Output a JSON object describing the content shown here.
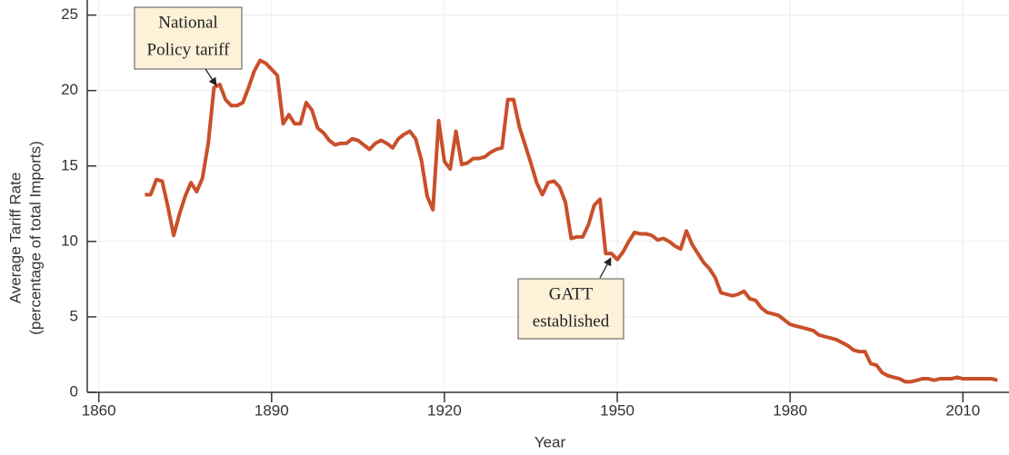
{
  "chart_data": {
    "type": "line",
    "x_label": "Year",
    "y_label": [
      "Average Tariff Rate",
      "(percentage of  total Imports)"
    ],
    "x": [
      1868,
      1869,
      1870,
      1871,
      1872,
      1873,
      1874,
      1875,
      1876,
      1877,
      1878,
      1879,
      1880,
      1881,
      1882,
      1883,
      1884,
      1885,
      1886,
      1887,
      1888,
      1889,
      1890,
      1891,
      1892,
      1893,
      1894,
      1895,
      1896,
      1897,
      1898,
      1899,
      1900,
      1901,
      1902,
      1903,
      1904,
      1905,
      1906,
      1907,
      1908,
      1909,
      1910,
      1911,
      1912,
      1913,
      1914,
      1915,
      1916,
      1917,
      1918,
      1919,
      1920,
      1921,
      1922,
      1923,
      1924,
      1925,
      1926,
      1927,
      1928,
      1929,
      1930,
      1931,
      1932,
      1933,
      1934,
      1935,
      1936,
      1937,
      1938,
      1939,
      1940,
      1941,
      1942,
      1943,
      1944,
      1945,
      1946,
      1947,
      1948,
      1949,
      1950,
      1951,
      1952,
      1953,
      1954,
      1955,
      1956,
      1957,
      1958,
      1959,
      1960,
      1961,
      1962,
      1963,
      1964,
      1965,
      1966,
      1967,
      1968,
      1969,
      1970,
      1971,
      1972,
      1973,
      1974,
      1975,
      1976,
      1977,
      1978,
      1979,
      1980,
      1981,
      1982,
      1983,
      1984,
      1985,
      1986,
      1987,
      1988,
      1989,
      1990,
      1991,
      1992,
      1993,
      1994,
      1995,
      1996,
      1997,
      1998,
      1999,
      2000,
      2001,
      2002,
      2003,
      2004,
      2005,
      2006,
      2007,
      2008,
      2009,
      2010,
      2011,
      2012,
      2013,
      2014,
      2015,
      2016
    ],
    "values": [
      13.1,
      13.1,
      14.1,
      14.0,
      12.3,
      10.4,
      11.8,
      13.0,
      13.9,
      13.3,
      14.2,
      16.5,
      20.2,
      20.4,
      19.4,
      19.0,
      19.0,
      19.2,
      20.2,
      21.3,
      22.0,
      21.8,
      21.4,
      21.0,
      17.8,
      18.4,
      17.8,
      17.8,
      19.2,
      18.7,
      17.5,
      17.2,
      16.7,
      16.4,
      16.5,
      16.5,
      16.8,
      16.7,
      16.4,
      16.1,
      16.5,
      16.7,
      16.5,
      16.2,
      16.8,
      17.1,
      17.3,
      16.8,
      15.4,
      13.0,
      12.1,
      18.0,
      15.3,
      14.8,
      17.3,
      15.1,
      15.2,
      15.5,
      15.5,
      15.6,
      15.9,
      16.1,
      16.2,
      19.4,
      19.4,
      17.6,
      16.4,
      15.2,
      13.9,
      13.1,
      13.9,
      14.0,
      13.6,
      12.6,
      10.2,
      10.3,
      10.3,
      11.1,
      12.4,
      12.8,
      9.2,
      9.2,
      8.8,
      9.3,
      10.0,
      10.6,
      10.5,
      10.5,
      10.4,
      10.1,
      10.2,
      10.0,
      9.7,
      9.5,
      10.7,
      9.8,
      9.2,
      8.6,
      8.2,
      7.6,
      6.6,
      6.5,
      6.4,
      6.5,
      6.7,
      6.2,
      6.1,
      5.6,
      5.3,
      5.2,
      5.1,
      4.8,
      4.5,
      4.4,
      4.3,
      4.2,
      4.1,
      3.8,
      3.7,
      3.6,
      3.5,
      3.3,
      3.1,
      2.8,
      2.7,
      2.7,
      1.9,
      1.8,
      1.3,
      1.1,
      1.0,
      0.9,
      0.7,
      0.7,
      0.8,
      0.9,
      0.9,
      0.8,
      0.9,
      0.9,
      0.9,
      1.0,
      0.9,
      0.9,
      0.9,
      0.9,
      0.9,
      0.9,
      0.8
    ],
    "color": "#c8502a",
    "xlim": [
      1858,
      2018
    ],
    "xticks": [
      1860,
      1890,
      1920,
      1950,
      1980,
      2010
    ],
    "ylim": [
      0,
      26
    ],
    "yticks": [
      0,
      5,
      10,
      15,
      20,
      25
    ],
    "grid": true,
    "annotations": [
      {
        "lines": [
          "National",
          "Policy tariff"
        ]
      },
      {
        "lines": [
          "GATT",
          "established"
        ]
      }
    ]
  }
}
